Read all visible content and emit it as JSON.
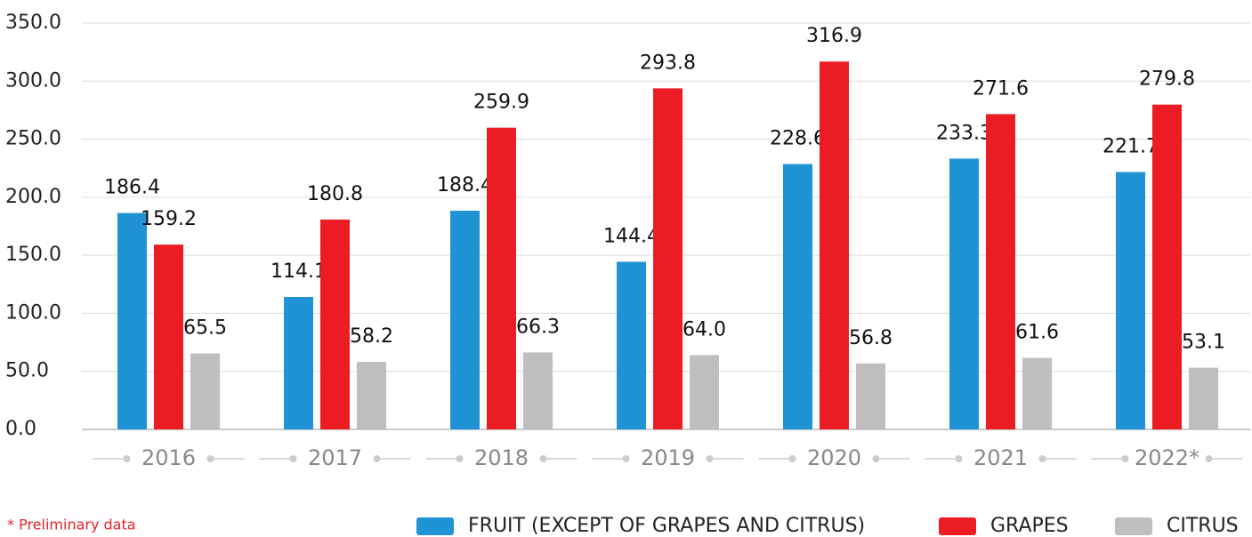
{
  "chart_data": {
    "type": "bar",
    "categories": [
      "2016",
      "2017",
      "2018",
      "2019",
      "2020",
      "2021",
      "2022*"
    ],
    "series": [
      {
        "name": "FRUIT (EXCEPT OF GRAPES AND CITRUS)",
        "color": "#1f93d3",
        "values": [
          186.4,
          114.1,
          188.4,
          144.4,
          228.6,
          233.3,
          221.7
        ],
        "value_labels": [
          "186.4",
          "114.1",
          "188.4",
          "144.4",
          "228.6",
          "233.3",
          "221.7"
        ]
      },
      {
        "name": "GRAPES",
        "color": "#ec1c24",
        "values": [
          159.2,
          180.8,
          259.9,
          293.8,
          316.9,
          271.6,
          279.8
        ],
        "value_labels": [
          "159.2",
          "180.8",
          "259.9",
          "293.8",
          "316.9",
          "271.6",
          "279.8"
        ]
      },
      {
        "name": "CITRUS",
        "color": "#bebec0",
        "values": [
          65.5,
          58.2,
          66.3,
          64.0,
          56.8,
          61.6,
          53.1
        ],
        "value_labels": [
          "65.5",
          "58.2",
          "66.3",
          "64.0",
          "56.8",
          "61.6",
          "53.1"
        ]
      }
    ],
    "ylim": [
      0,
      350
    ],
    "yticks": [
      {
        "value": 0,
        "label": "0.0"
      },
      {
        "value": 50,
        "label": "50.0"
      },
      {
        "value": 100,
        "label": "100.0"
      },
      {
        "value": 150,
        "label": "150.0"
      },
      {
        "value": 200,
        "label": "200.0"
      },
      {
        "value": 250,
        "label": "250.0"
      },
      {
        "value": 300,
        "label": "300.0"
      },
      {
        "value": 350,
        "label": "350.0"
      }
    ],
    "grid": true,
    "legend": "bottom-right",
    "annotation": "* Preliminary data"
  }
}
